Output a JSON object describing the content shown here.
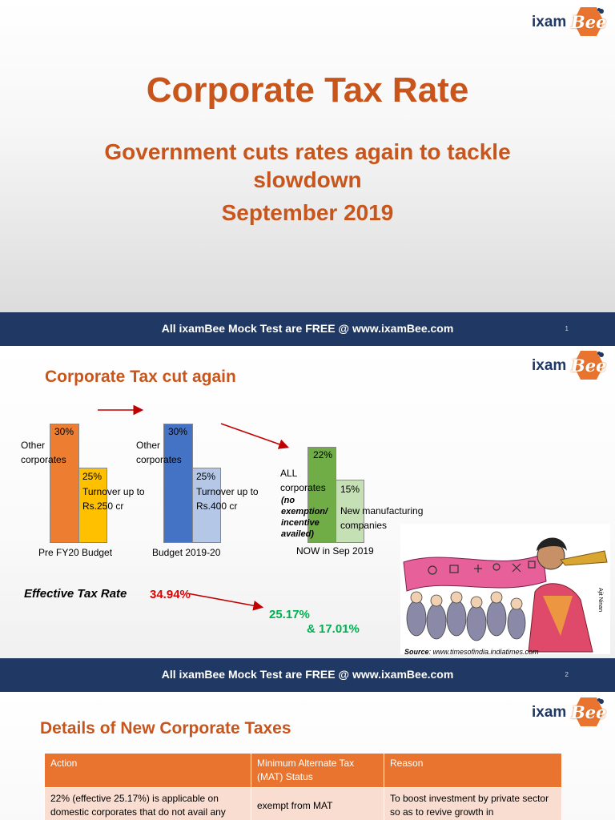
{
  "brand": {
    "logo_left": "ixam",
    "logo_right": "Bee",
    "tm": "TM"
  },
  "footer": {
    "text": "All ixamBee Mock Test are FREE @ www.ixamBee.com"
  },
  "slide1": {
    "title": "Corporate Tax Rate",
    "subtitle": "Government cuts rates again to tackle slowdown",
    "date": "September 2019",
    "page": "1"
  },
  "slide2": {
    "title": "Corporate Tax cut again",
    "page": "2",
    "groups": [
      {
        "caption": "Pre FY20 Budget",
        "bar1": {
          "value": "30%",
          "label": "Other corporates",
          "color": "#ed7d31"
        },
        "bar2": {
          "value": "25%",
          "label": "Turnover up to Rs.250 cr",
          "color": "#ffc000"
        }
      },
      {
        "caption": "Budget 2019-20",
        "bar1": {
          "value": "30%",
          "label": "Other corporates",
          "color": "#4472c4"
        },
        "bar2": {
          "value": "25%",
          "label": "Turnover up to Rs.400 cr",
          "color": "#b4c7e7"
        }
      },
      {
        "caption": "NOW in Sep 2019",
        "bar1": {
          "value": "22%",
          "label": "ALL corporates",
          "note": "(no exemption/ incentive availed)",
          "color": "#70ad47"
        },
        "bar2": {
          "value": "15%",
          "label": "New manufacturing companies",
          "color": "#c5e0b4"
        }
      }
    ],
    "effective": {
      "label": "Effective Tax Rate",
      "old": "34.94%",
      "new1": "25.17%",
      "new2": "& 17.01%"
    },
    "source_label": "Source",
    "source_url": ": www.timesofindia.indiatimes.com",
    "cartoon_signature": "Ajit Ninan"
  },
  "slide3": {
    "title": "Details of New Corporate Taxes",
    "headers": [
      "Action",
      "Minimum Alternate Tax (MAT) Status",
      "Reason"
    ],
    "row1": [
      "22% (effective 25.17%) is applicable on domestic corporates that do not avail any",
      "exempt from MAT",
      "To boost investment by private sector so as to revive growth in"
    ]
  }
}
